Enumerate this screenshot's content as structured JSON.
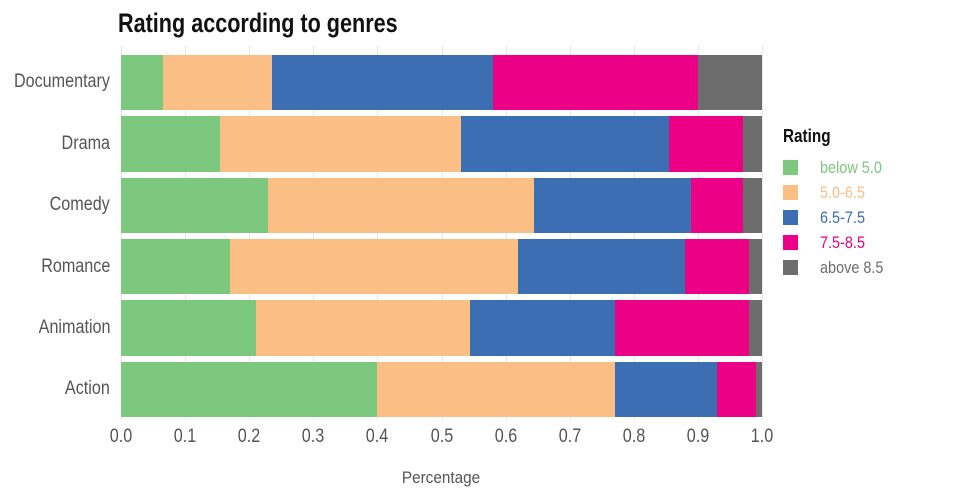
{
  "chart_data": {
    "type": "bar",
    "orientation": "horizontal_stacked",
    "title": "Rating according to genres",
    "xlabel": "Percentage",
    "ylabel": "",
    "categories": [
      "Documentary",
      "Drama",
      "Comedy",
      "Romance",
      "Animation",
      "Action"
    ],
    "series": [
      {
        "name": "below 5.0",
        "color": "#7cc87e",
        "values": [
          0.065,
          0.155,
          0.23,
          0.17,
          0.21,
          0.4
        ]
      },
      {
        "name": "5.0-6.5",
        "color": "#fbbe84",
        "values": [
          0.17,
          0.375,
          0.415,
          0.45,
          0.335,
          0.37
        ]
      },
      {
        "name": "6.5-7.5",
        "color": "#3b6eb2",
        "values": [
          0.345,
          0.325,
          0.245,
          0.26,
          0.225,
          0.16
        ]
      },
      {
        "name": "7.5-8.5",
        "color": "#ec0085",
        "values": [
          0.32,
          0.115,
          0.08,
          0.1,
          0.21,
          0.06
        ]
      },
      {
        "name": "above 8.5",
        "color": "#6d6d6d",
        "values": [
          0.1,
          0.03,
          0.03,
          0.02,
          0.02,
          0.01
        ]
      }
    ],
    "xlim": [
      0,
      1
    ],
    "x_ticks": [
      "0.0",
      "0.1",
      "0.2",
      "0.3",
      "0.4",
      "0.5",
      "0.6",
      "0.7",
      "0.8",
      "0.9",
      "1.0"
    ],
    "grid": true,
    "legend_title": "Rating",
    "legend_position": "right"
  },
  "style": {
    "background": "#ffffff",
    "grid_color": "#f0e2e8",
    "text_color": "#555555",
    "title_color": "#111111"
  }
}
